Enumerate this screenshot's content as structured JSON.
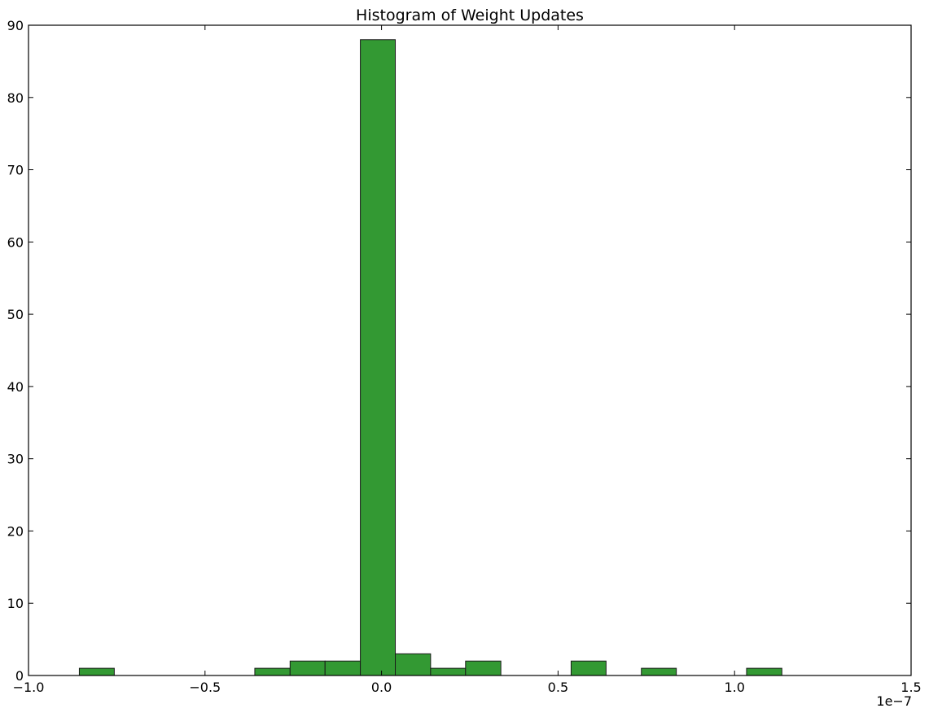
{
  "chart_data": {
    "type": "bar",
    "title": "Histogram of Weight Updates",
    "xlabel": "",
    "ylabel": "",
    "x_scale_label": "1e−7",
    "xlim": [
      -1.0,
      1.5
    ],
    "ylim": [
      0,
      90
    ],
    "x_ticks": [
      -1.0,
      -0.5,
      0.0,
      0.5,
      1.0,
      1.5
    ],
    "x_tick_labels": [
      "−1.0",
      "−0.5",
      "0.0",
      "0.5",
      "1.0",
      "1.5"
    ],
    "y_ticks": [
      0,
      10,
      20,
      30,
      40,
      50,
      60,
      70,
      80,
      90
    ],
    "y_tick_labels": [
      "0",
      "10",
      "20",
      "30",
      "40",
      "50",
      "60",
      "70",
      "80",
      "90"
    ],
    "bar_color": "#339933",
    "edge_color": "#1a1a1a",
    "grid": false,
    "bins": [
      {
        "x0": -0.856,
        "x1": -0.757,
        "count": 1
      },
      {
        "x0": -0.359,
        "x1": -0.259,
        "count": 1
      },
      {
        "x0": -0.259,
        "x1": -0.16,
        "count": 2
      },
      {
        "x0": -0.16,
        "x1": -0.06,
        "count": 2
      },
      {
        "x0": -0.06,
        "x1": 0.039,
        "count": 88
      },
      {
        "x0": 0.039,
        "x1": 0.139,
        "count": 3
      },
      {
        "x0": 0.139,
        "x1": 0.238,
        "count": 1
      },
      {
        "x0": 0.238,
        "x1": 0.338,
        "count": 2
      },
      {
        "x0": 0.537,
        "x1": 0.636,
        "count": 2
      },
      {
        "x0": 0.736,
        "x1": 0.835,
        "count": 1
      },
      {
        "x0": 1.034,
        "x1": 1.134,
        "count": 1
      }
    ]
  }
}
